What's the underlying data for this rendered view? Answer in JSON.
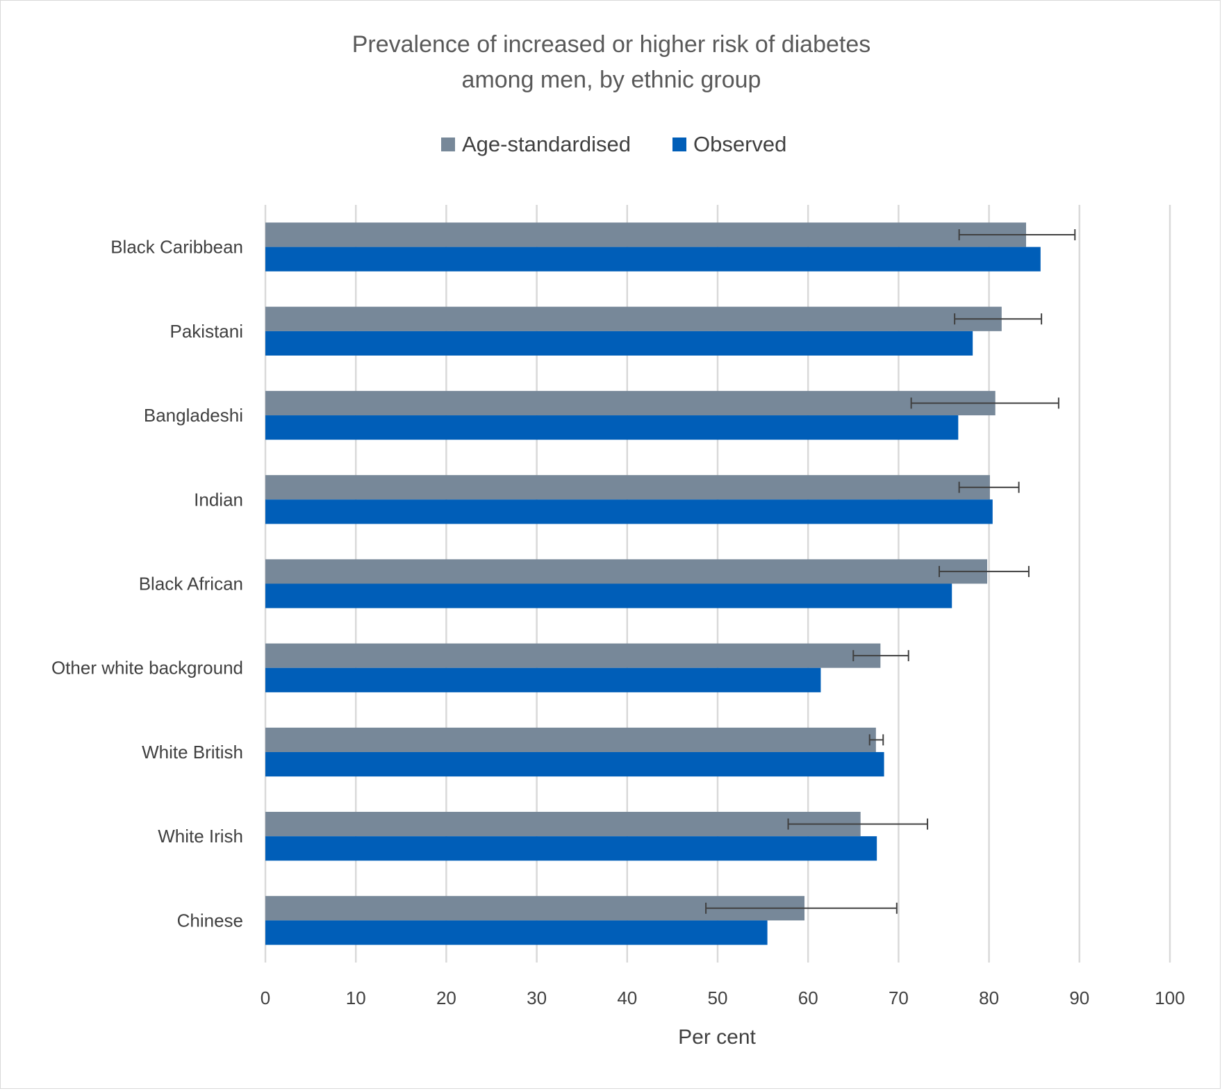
{
  "chart_data": {
    "type": "bar",
    "orientation": "horizontal",
    "title_lines": [
      "Prevalence of increased or higher risk of diabetes",
      "among men, by ethnic group"
    ],
    "xlabel": "Per cent",
    "ylabel": "",
    "xlim": [
      0,
      100
    ],
    "x_ticks": [
      0,
      10,
      20,
      30,
      40,
      50,
      60,
      70,
      80,
      90,
      100
    ],
    "grid": "vertical",
    "legend_position": "top",
    "categories": [
      "Black Caribbean",
      "Pakistani",
      "Bangladeshi",
      "Indian",
      "Black African",
      "Other white background",
      "White British",
      "White Irish",
      "Chinese"
    ],
    "series": [
      {
        "name": "Age-standardised",
        "color": "#778899",
        "values": [
          84.1,
          81.4,
          80.7,
          80.1,
          79.8,
          68.0,
          67.5,
          65.8,
          59.6
        ],
        "error_low": [
          76.7,
          76.2,
          71.4,
          76.7,
          74.5,
          65.0,
          66.8,
          57.8,
          48.7
        ],
        "error_high": [
          89.5,
          85.8,
          87.7,
          83.3,
          84.4,
          71.1,
          68.3,
          73.2,
          69.8
        ]
      },
      {
        "name": "Observed",
        "color": "#005EB8",
        "values": [
          85.7,
          78.2,
          76.6,
          80.4,
          75.9,
          61.4,
          68.4,
          67.6,
          55.5
        ]
      }
    ],
    "error_bar_color": "#404040"
  }
}
